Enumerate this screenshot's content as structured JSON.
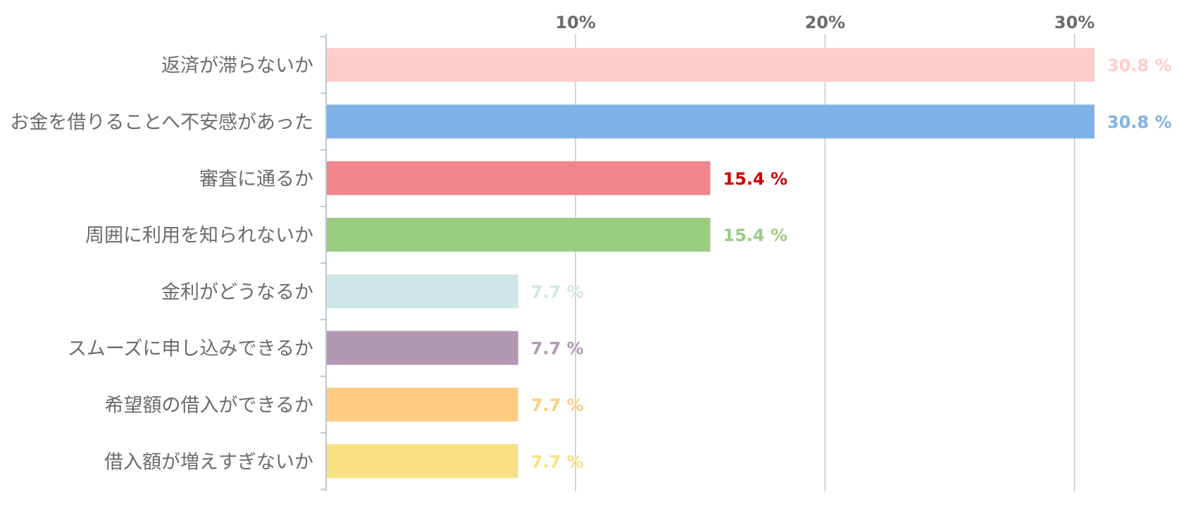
{
  "chart_data": {
    "type": "bar",
    "orientation": "horizontal",
    "categories": [
      "返済が滞らないか",
      "お金を借りることへ不安感があった",
      "審査に通るか",
      "周囲に利用を知られないか",
      "金利がどうなるか",
      "スムーズに申し込みできるか",
      "希望額の借入ができるか",
      "借入額が増えすぎないか"
    ],
    "values": [
      30.8,
      30.8,
      15.4,
      15.4,
      7.7,
      7.7,
      7.7,
      7.7
    ],
    "value_labels": [
      "30.8 %",
      "30.8 %",
      "15.4 %",
      "15.4 %",
      "7.7 %",
      "7.7 %",
      "7.7 %",
      "7.7 %"
    ],
    "bar_colors": [
      "#ffcccc",
      "#80b2e6",
      "#ee868b",
      "#9acc82",
      "#cde6e6",
      "#b198b2",
      "#ffcc81",
      "#f9e084"
    ],
    "label_colors": [
      "#ffcccc",
      "#80b2e6",
      "#cc0000",
      "#9acc82",
      "#cde6e6",
      "#b198b2",
      "#ffcc81",
      "#f9e084"
    ],
    "xticks": [
      10,
      20,
      30
    ],
    "xtick_labels": [
      "10%",
      "20%",
      "30%"
    ],
    "xlim": [
      0,
      30.8
    ],
    "grid": true,
    "title": "",
    "xlabel": "",
    "ylabel": ""
  }
}
